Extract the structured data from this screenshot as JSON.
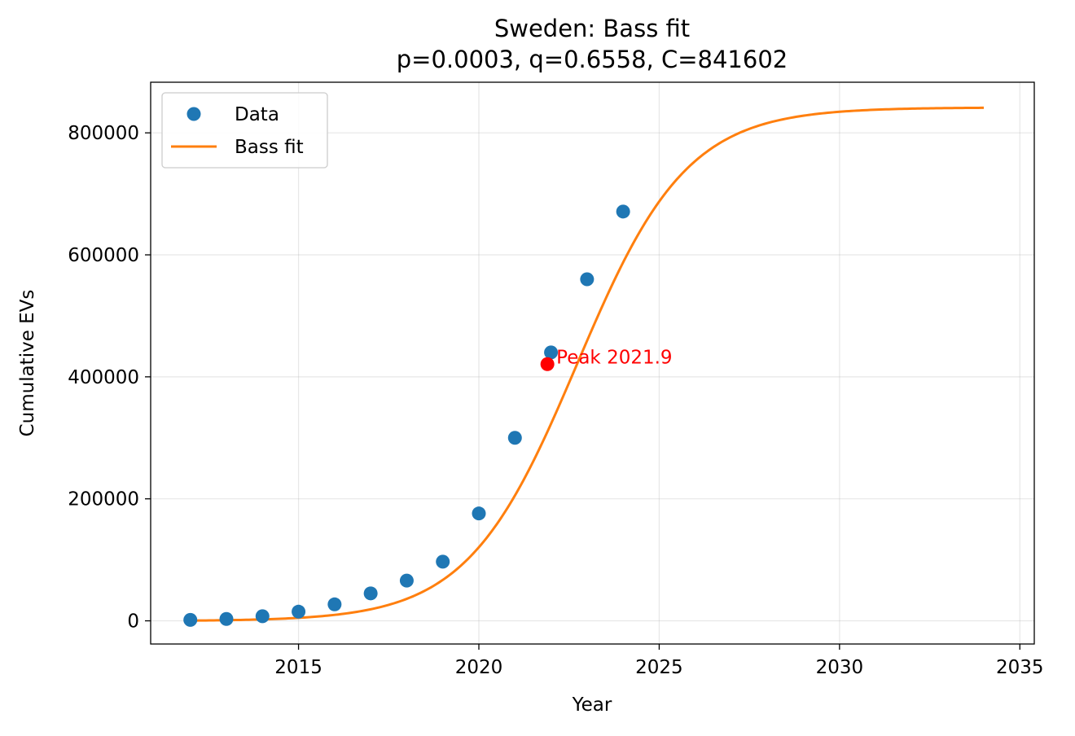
{
  "chart_data": {
    "type": "scatter",
    "title": "Sweden: Bass fit",
    "subtitle": "p=0.0003, q=0.6558, C=841602",
    "xlabel": "Year",
    "ylabel": "Cumulative EVs",
    "xlim": [
      2010.9,
      2035.4
    ],
    "ylim": [
      -38000,
      883000
    ],
    "xticks": [
      2015,
      2020,
      2025,
      2030,
      2035
    ],
    "yticks": [
      0,
      200000,
      400000,
      600000,
      800000
    ],
    "grid": true,
    "legend_position": "top-left",
    "series": [
      {
        "name": "Data",
        "kind": "scatter",
        "color": "#1f77b4",
        "points": [
          {
            "x": 2012,
            "y": 1500
          },
          {
            "x": 2013,
            "y": 3000
          },
          {
            "x": 2014,
            "y": 7500
          },
          {
            "x": 2015,
            "y": 15000
          },
          {
            "x": 2016,
            "y": 27000
          },
          {
            "x": 2017,
            "y": 45000
          },
          {
            "x": 2018,
            "y": 66000
          },
          {
            "x": 2019,
            "y": 97000
          },
          {
            "x": 2020,
            "y": 176000
          },
          {
            "x": 2021,
            "y": 300000
          },
          {
            "x": 2022,
            "y": 440000
          },
          {
            "x": 2023,
            "y": 560000
          },
          {
            "x": 2024,
            "y": 671000
          }
        ]
      },
      {
        "name": "Bass fit",
        "kind": "line",
        "color": "#ff7f0e",
        "model": "bass",
        "p": 0.0003,
        "q": 0.6558,
        "C": 841602,
        "x_start": 2012,
        "x_end": 2034
      }
    ],
    "annotations": [
      {
        "text": "Peak 2021.9",
        "x": 2021.9,
        "y": 420801,
        "color": "#ff0000"
      }
    ]
  }
}
